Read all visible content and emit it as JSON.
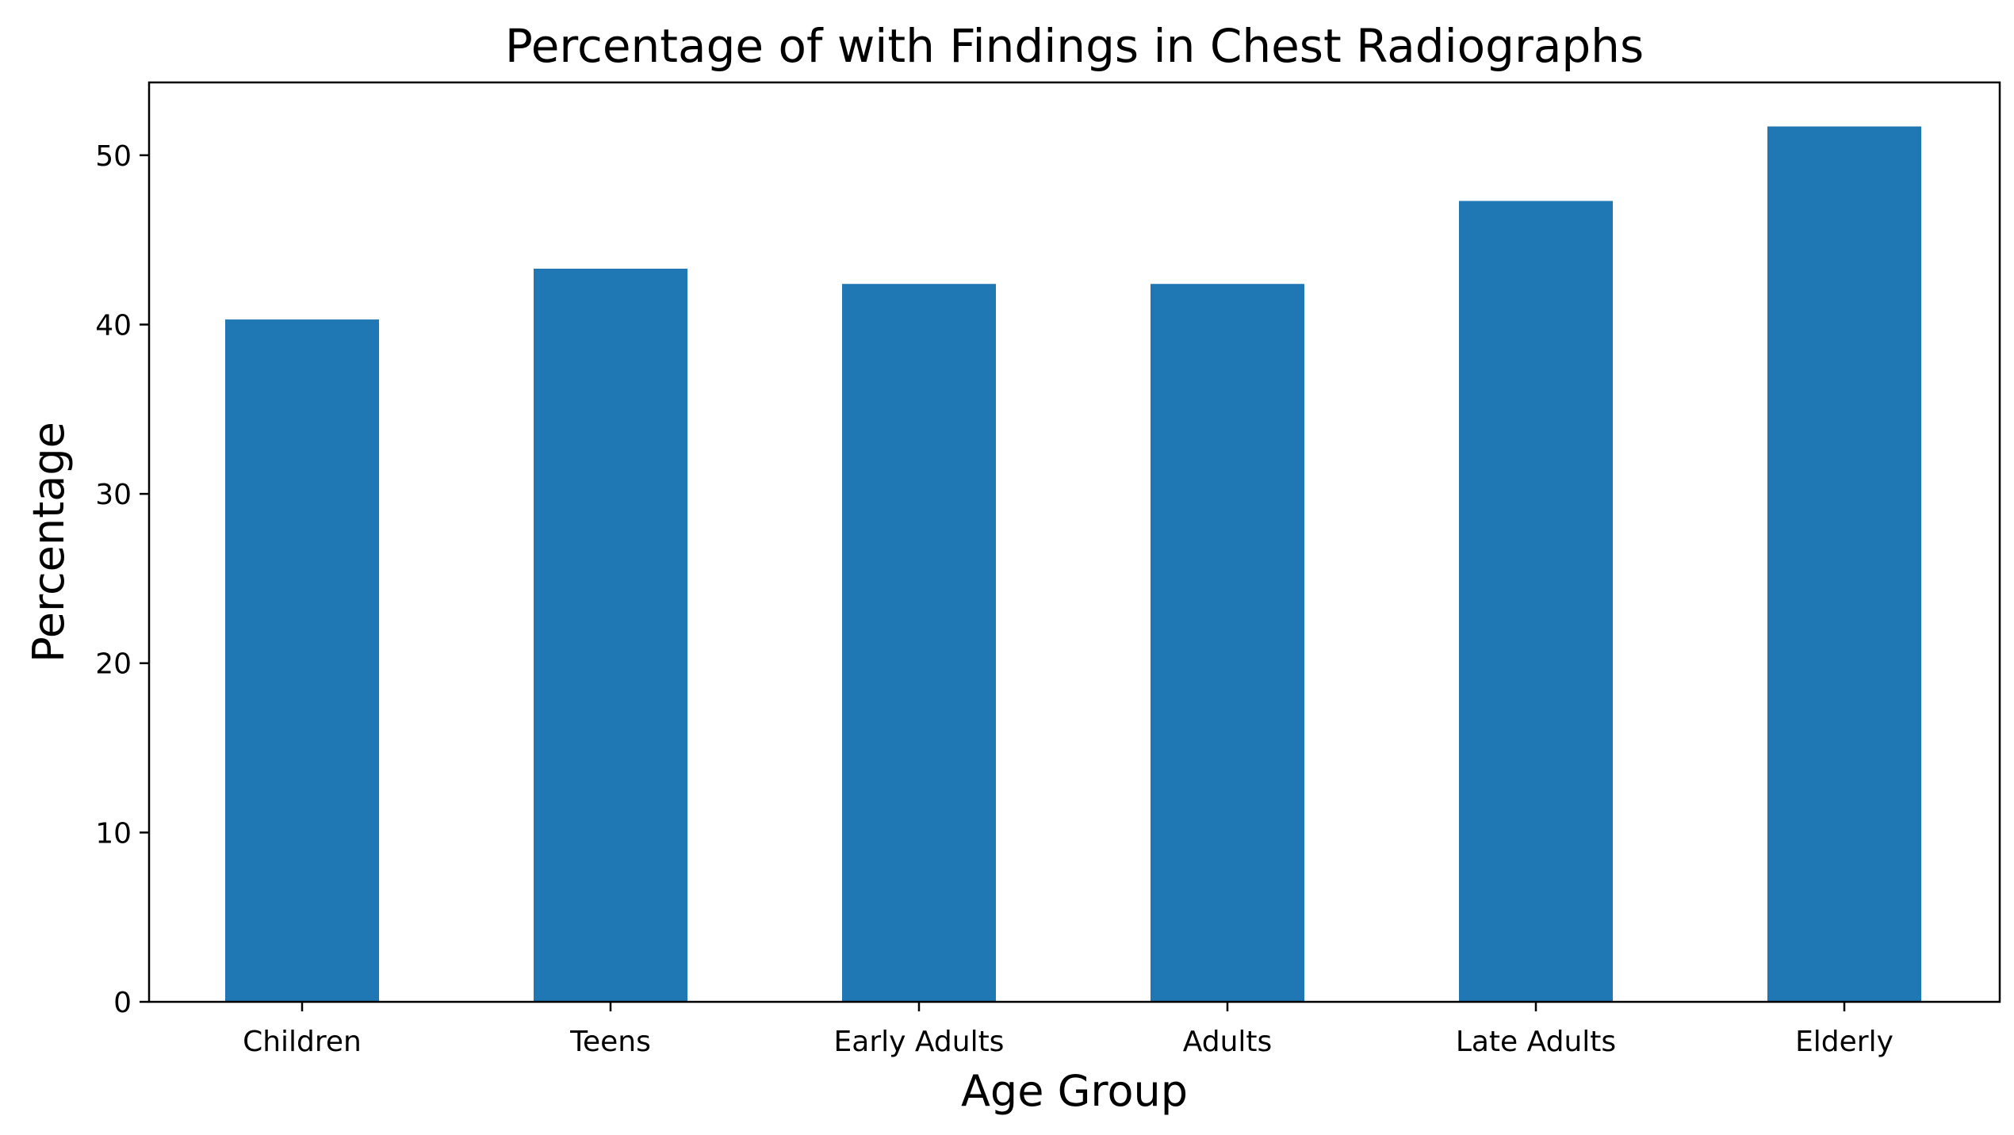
{
  "chart_data": {
    "type": "bar",
    "title": "Percentage of with Findings in Chest Radiographs",
    "xlabel": "Age Group",
    "ylabel": "Percentage",
    "categories": [
      "Children",
      "Teens",
      "Early Adults",
      "Adults",
      "Late Adults",
      "Elderly"
    ],
    "values": [
      40.3,
      43.3,
      42.4,
      42.4,
      47.3,
      51.7
    ],
    "ylim": [
      0,
      54.3
    ],
    "yticks": [
      0,
      10,
      20,
      30,
      40,
      50
    ],
    "grid": false,
    "legend": "none",
    "bar_color": "#1f77b4"
  }
}
